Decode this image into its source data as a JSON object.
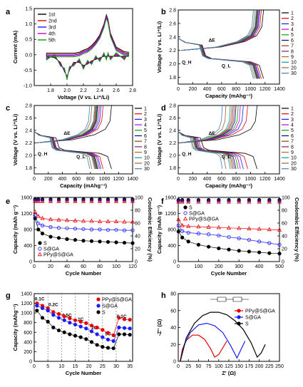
{
  "chart_data": [
    {
      "panel": "a",
      "type": "line",
      "xlabel": "Voltage (V vs. Li⁺/Li)",
      "ylabel": "Current (mA)",
      "xlim": [
        1.6,
        2.8
      ],
      "ylim": [
        -1.0,
        1.5
      ],
      "xticks": [
        "1.8",
        "2.0",
        "2.2",
        "2.4",
        "2.6",
        "2.8"
      ],
      "yticks": [
        "-1.0",
        "-0.5",
        "0.0",
        "0.5",
        "1.0",
        "1.5"
      ],
      "legend": "top-left",
      "series": [
        {
          "name": "1st",
          "color": "#000000"
        },
        {
          "name": "2nd",
          "color": "#e60000"
        },
        {
          "name": "3rd",
          "color": "#1a1aff"
        },
        {
          "name": "4th",
          "color": "#cc00cc"
        },
        {
          "name": "5th",
          "color": "#00a000"
        }
      ],
      "x": [
        1.75,
        1.85,
        1.92,
        1.97,
        2.0,
        2.03,
        2.08,
        2.15,
        2.2,
        2.25,
        2.3,
        2.35,
        2.4,
        2.45,
        2.48,
        2.5,
        2.53,
        2.6,
        2.7,
        2.75
      ],
      "cathodic": [
        -0.05,
        -0.1,
        -0.25,
        -0.55,
        -0.7,
        -0.5,
        -0.25,
        -0.25,
        -0.35,
        -0.3,
        -0.2,
        -0.15,
        -0.1,
        -0.05,
        -0.05,
        -0.05,
        -0.05,
        -0.05,
        -0.05,
        -0.05
      ],
      "anodic": [
        0.05,
        0.05,
        0.05,
        0.05,
        0.05,
        0.05,
        0.05,
        0.08,
        0.15,
        0.2,
        0.3,
        0.45,
        0.65,
        1.0,
        1.3,
        1.15,
        0.7,
        0.25,
        0.1,
        0.08
      ]
    },
    {
      "panel": "b",
      "type": "line",
      "xlabel": "Capacity (mAhg⁻¹)",
      "ylabel": "Voltage (V vs. Li⁺/Li)",
      "xlim": [
        0,
        1400
      ],
      "ylim": [
        1.7,
        2.8
      ],
      "xticks": [
        "0",
        "200",
        "400",
        "600",
        "800",
        "1000",
        "1200",
        "1400"
      ],
      "yticks": [
        "1.8",
        "2.0",
        "2.2",
        "2.4",
        "2.6",
        "2.8"
      ],
      "legend_entries": [
        "1",
        "2",
        "3",
        "4",
        "5",
        "6",
        "7",
        "8",
        "9",
        "10",
        "20",
        "30"
      ],
      "annotations": [
        "ΔE",
        "Q_H",
        "Q_L"
      ],
      "end_capacity_discharge": [
        1180,
        1150,
        1130,
        1120,
        1110,
        1100,
        1095,
        1090,
        1085,
        1080,
        1060,
        1040
      ]
    },
    {
      "panel": "c",
      "type": "line",
      "xlabel": "Capacity (mAhg⁻¹)",
      "ylabel": "Voltage (V vs. Li⁺/Li)",
      "xlim": [
        0,
        1400
      ],
      "ylim": [
        1.7,
        2.8
      ],
      "xticks": [
        "0",
        "200",
        "400",
        "600",
        "800",
        "1000",
        "1200",
        "1400"
      ],
      "yticks": [
        "1.8",
        "2.0",
        "2.2",
        "2.4",
        "2.6",
        "2.8"
      ],
      "legend_entries": [
        "1",
        "2",
        "3",
        "4",
        "5",
        "6",
        "7",
        "8",
        "9",
        "10",
        "20",
        "30"
      ],
      "annotations": [
        "ΔE",
        "Q_H",
        "Q_L"
      ],
      "end_capacity_discharge": [
        1100,
        980,
        950,
        930,
        910,
        900,
        890,
        880,
        870,
        860,
        820,
        790
      ]
    },
    {
      "panel": "d",
      "type": "line",
      "xlabel": "Capacity (mAhg⁻¹)",
      "ylabel": "Voltage (V vs. Li⁺/Li)",
      "xlim": [
        0,
        1400
      ],
      "ylim": [
        1.7,
        2.8
      ],
      "xticks": [
        "0",
        "200",
        "400",
        "600",
        "800",
        "1000",
        "1200",
        "1400"
      ],
      "yticks": [
        "1.8",
        "2.0",
        "2.2",
        "2.4",
        "2.6",
        "2.8"
      ],
      "legend_entries": [
        "1",
        "2",
        "3",
        "4",
        "5",
        "6",
        "7",
        "8",
        "9",
        "10",
        "20",
        "30"
      ],
      "annotations": [
        "ΔE",
        "Q_H",
        "Q_L"
      ],
      "end_capacity_discharge": [
        1090,
        960,
        900,
        860,
        830,
        800,
        780,
        760,
        740,
        720,
        660,
        610
      ]
    },
    {
      "panel": "e",
      "type": "scatter",
      "xlabel": "Cycle Number",
      "ylabel": "Capacity (mAh g⁻¹)",
      "y2label": "Coulombic Efficiency (%)",
      "xlim": [
        0,
        120
      ],
      "ylim": [
        0,
        1600
      ],
      "y2lim": [
        0,
        100
      ],
      "xticks": [
        "0",
        "20",
        "40",
        "60",
        "80",
        "100",
        "120"
      ],
      "yticks": [
        "0",
        "400",
        "800",
        "1200",
        "1600"
      ],
      "y2ticks": [
        "0",
        "20",
        "40",
        "60",
        "80",
        "100"
      ],
      "legend": "bottom-left",
      "series": [
        {
          "name": "S",
          "color": "#000000",
          "x": [
            1,
            5,
            10,
            20,
            30,
            40,
            50,
            60,
            70,
            80,
            90,
            100,
            110,
            120
          ],
          "y": [
            1080,
            800,
            700,
            620,
            590,
            560,
            540,
            520,
            510,
            500,
            490,
            480,
            470,
            460
          ]
        },
        {
          "name": "S@GA",
          "color": "#1a1aff",
          "x": [
            1,
            5,
            10,
            20,
            30,
            40,
            50,
            60,
            70,
            80,
            90,
            100,
            110,
            120
          ],
          "y": [
            1150,
            950,
            900,
            860,
            840,
            830,
            820,
            810,
            800,
            800,
            790,
            790,
            780,
            780
          ]
        },
        {
          "name": "PPy@S@GA",
          "color": "#e60000",
          "x": [
            1,
            5,
            10,
            20,
            30,
            40,
            50,
            60,
            70,
            80,
            90,
            100,
            110,
            120
          ],
          "y": [
            1240,
            1130,
            1080,
            1050,
            1040,
            1030,
            1020,
            1010,
            1010,
            1000,
            1000,
            1000,
            990,
            990
          ]
        }
      ],
      "coulombic_efficiency": 97
    },
    {
      "panel": "f",
      "type": "scatter",
      "xlabel": "Cycle Number",
      "ylabel": "Capacity (mAh g⁻¹)",
      "y2label": "Coulombic Efficiency (%)",
      "xlim": [
        0,
        500
      ],
      "ylim": [
        0,
        1600
      ],
      "y2lim": [
        0,
        100
      ],
      "xticks": [
        "0",
        "100",
        "200",
        "300",
        "400",
        "500"
      ],
      "yticks": [
        "0",
        "400",
        "800",
        "1200",
        "1600"
      ],
      "y2ticks": [
        "0",
        "20",
        "40",
        "60",
        "80",
        "100"
      ],
      "legend": "top-left",
      "series": [
        {
          "name": "S",
          "color": "#000000",
          "x": [
            1,
            20,
            50,
            100,
            150,
            200,
            250,
            300,
            350,
            400,
            450,
            500
          ],
          "y": [
            750,
            600,
            500,
            420,
            370,
            330,
            300,
            270,
            250,
            230,
            210,
            200
          ]
        },
        {
          "name": "S@GA",
          "color": "#1a1aff",
          "x": [
            1,
            20,
            50,
            100,
            150,
            200,
            250,
            300,
            350,
            400,
            450,
            500
          ],
          "y": [
            900,
            760,
            720,
            700,
            680,
            650,
            610,
            580,
            540,
            500,
            460,
            420
          ]
        },
        {
          "name": "PPy@S@GA",
          "color": "#e60000",
          "x": [
            1,
            20,
            50,
            100,
            150,
            200,
            250,
            300,
            350,
            400,
            450,
            500
          ],
          "y": [
            1050,
            900,
            880,
            870,
            860,
            850,
            840,
            830,
            820,
            810,
            800,
            790
          ]
        }
      ],
      "coulombic_efficiency": 96
    },
    {
      "panel": "g",
      "type": "scatter",
      "xlabel": "Cycle Number",
      "ylabel": "Capacity (mAhg⁻¹)",
      "xlim": [
        0,
        36
      ],
      "ylim": [
        0,
        1400
      ],
      "xticks": [
        "0",
        "5",
        "10",
        "15",
        "20",
        "25",
        "30",
        "35"
      ],
      "yticks": [
        "0",
        "200",
        "400",
        "600",
        "800",
        "1000",
        "1200",
        "1400"
      ],
      "rate_labels": [
        "0.1C",
        "0.2C",
        "0.5C",
        "1C",
        "2C",
        "5C",
        "0.1C"
      ],
      "legend": "top-right",
      "series": [
        {
          "name": "PPy@S@GA",
          "color": "#e60000",
          "x": [
            1,
            3,
            5,
            7,
            9,
            11,
            13,
            15,
            17,
            19,
            21,
            23,
            25,
            27,
            29,
            31,
            33,
            35
          ],
          "y": [
            1200,
            1150,
            1100,
            1020,
            980,
            930,
            890,
            850,
            820,
            790,
            740,
            700,
            650,
            590,
            540,
            900,
            870,
            860
          ]
        },
        {
          "name": "S@GA",
          "color": "#1a1aff",
          "x": [
            1,
            3,
            5,
            7,
            9,
            11,
            13,
            15,
            17,
            19,
            21,
            23,
            25,
            27,
            29,
            31,
            33,
            35
          ],
          "y": [
            1150,
            1100,
            1050,
            960,
            900,
            850,
            800,
            760,
            720,
            680,
            620,
            560,
            500,
            450,
            420,
            700,
            690,
            680
          ]
        },
        {
          "name": "S",
          "color": "#000000",
          "x": [
            1,
            3,
            5,
            7,
            9,
            11,
            13,
            15,
            17,
            19,
            21,
            23,
            25,
            27,
            29,
            31,
            33,
            35
          ],
          "y": [
            1050,
            900,
            820,
            700,
            640,
            600,
            560,
            530,
            500,
            460,
            400,
            340,
            300,
            280,
            270,
            560,
            560,
            550
          ]
        }
      ]
    },
    {
      "panel": "h",
      "type": "scatter",
      "xlabel": "Z' (Ω)",
      "ylabel": "-Z'' (Ω)",
      "xlim": [
        0,
        250
      ],
      "ylim": [
        0,
        80
      ],
      "xticks": [
        "0",
        "25",
        "50",
        "75",
        "100",
        "125",
        "150",
        "175",
        "200",
        "225",
        "250"
      ],
      "yticks": [
        "0",
        "20",
        "40",
        "60",
        "80"
      ],
      "legend": "top-right",
      "series": [
        {
          "name": "PPy@S@GA",
          "color": "#e60000",
          "x": [
            5,
            10,
            20,
            35,
            50,
            65,
            80,
            90,
            100,
            110,
            120
          ],
          "y": [
            0,
            14,
            25,
            31,
            31,
            26,
            15,
            5,
            8,
            16,
            24
          ]
        },
        {
          "name": "S@GA",
          "color": "#1a1aff",
          "x": [
            5,
            15,
            30,
            50,
            70,
            90,
            110,
            130,
            145,
            155,
            165
          ],
          "y": [
            0,
            20,
            34,
            43,
            45,
            42,
            34,
            18,
            4,
            14,
            24
          ]
        },
        {
          "name": "S",
          "color": "#000000",
          "x": [
            5,
            20,
            40,
            60,
            80,
            100,
            120,
            140,
            160,
            180,
            195,
            205,
            215
          ],
          "y": [
            0,
            28,
            45,
            54,
            58,
            58,
            55,
            48,
            38,
            22,
            5,
            10,
            20
          ]
        }
      ]
    }
  ]
}
